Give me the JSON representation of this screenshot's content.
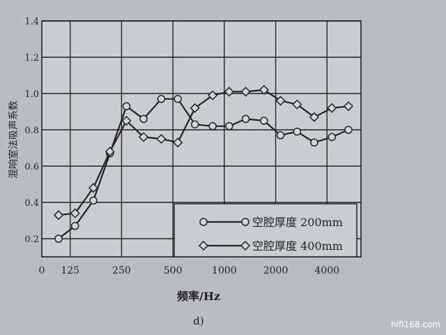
{
  "chart_data": {
    "type": "line",
    "title": "",
    "xlabel": "频率/Hz",
    "ylabel": "混响室法吸声系数",
    "caption": "d)",
    "x": [
      100,
      125,
      160,
      200,
      250,
      315,
      400,
      500,
      630,
      800,
      1000,
      1250,
      1600,
      2000,
      2500,
      3150,
      4000,
      5000
    ],
    "x_scale": "log",
    "x_tick_labels": [
      "125",
      "250",
      "500",
      "1000",
      "2000",
      "4000"
    ],
    "x_ticks": [
      125,
      250,
      500,
      1000,
      2000,
      4000
    ],
    "y_ticks": [
      0.2,
      0.4,
      0.6,
      0.8,
      1.0,
      1.2,
      1.4
    ],
    "y_tick_labels": [
      "0.2",
      "0.4",
      "0.6",
      "0.8",
      "1.0",
      "1.2",
      "1.4"
    ],
    "origin_label": "0",
    "ylim": [
      0.1,
      1.4
    ],
    "grid": true,
    "legend_placement": "bottom-right",
    "series": [
      {
        "name": "空腔厚度 200mm",
        "marker": "circle",
        "color": "#222222",
        "values": [
          0.2,
          0.27,
          0.41,
          0.67,
          0.93,
          0.86,
          0.97,
          0.97,
          0.83,
          0.82,
          0.82,
          0.86,
          0.85,
          0.77,
          0.79,
          0.73,
          0.76,
          0.8
        ]
      },
      {
        "name": "空腔厚度 400mm",
        "marker": "diamond",
        "color": "#222222",
        "values": [
          0.33,
          0.34,
          0.48,
          0.68,
          0.85,
          0.76,
          0.75,
          0.73,
          0.92,
          0.99,
          1.01,
          1.01,
          1.02,
          0.96,
          0.94,
          0.87,
          0.92,
          0.93
        ]
      }
    ]
  },
  "watermark": "hifi168.com"
}
